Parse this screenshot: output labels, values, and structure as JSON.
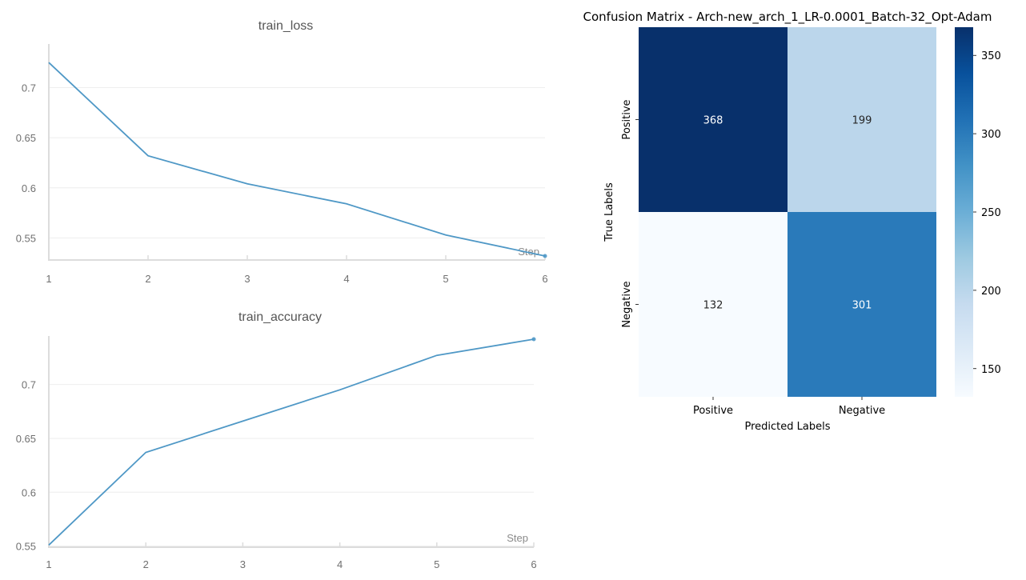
{
  "chart_data": [
    {
      "type": "line",
      "title": "train_loss",
      "x_axis_label": "Step",
      "x": [
        1,
        2,
        3,
        4,
        5,
        6
      ],
      "xticks": [
        "1",
        "2",
        "3",
        "4",
        "5",
        "6"
      ],
      "yticks": [
        "0.7",
        "0.65",
        "0.6",
        "0.55"
      ],
      "ylim": [
        0.528,
        0.7435
      ],
      "series": [
        {
          "values": [
            0.725,
            0.632,
            0.604,
            0.584,
            0.553,
            0.532
          ]
        }
      ],
      "line_color": "#4f98c6",
      "grid": true
    },
    {
      "type": "line",
      "title": "train_accuracy",
      "x_axis_label": "Step",
      "x": [
        1,
        2,
        3,
        4,
        5,
        6
      ],
      "xticks": [
        "1",
        "2",
        "3",
        "4",
        "5",
        "6"
      ],
      "yticks": [
        "0.7",
        "0.65",
        "0.6",
        "0.55"
      ],
      "ylim": [
        0.549,
        0.745
      ],
      "series": [
        {
          "values": [
            0.551,
            0.637,
            0.666,
            0.695,
            0.727,
            0.742
          ]
        }
      ],
      "line_color": "#4f98c6",
      "grid": true
    },
    {
      "type": "heatmap",
      "title": "Confusion Matrix - Arch-new_arch_1_LR-0.0001_Batch-32_Opt-Adam",
      "xlabel": "Predicted Labels",
      "ylabel": "True Labels",
      "x_categories": [
        "Positive",
        "Negative"
      ],
      "y_categories": [
        "Positive",
        "Negative"
      ],
      "values": [
        [
          368,
          199
        ],
        [
          132,
          301
        ]
      ],
      "colorbar_ticks": [
        "350",
        "300",
        "250",
        "200",
        "150"
      ],
      "colorbar_range": [
        132,
        368
      ],
      "colormap": "Blues"
    }
  ]
}
